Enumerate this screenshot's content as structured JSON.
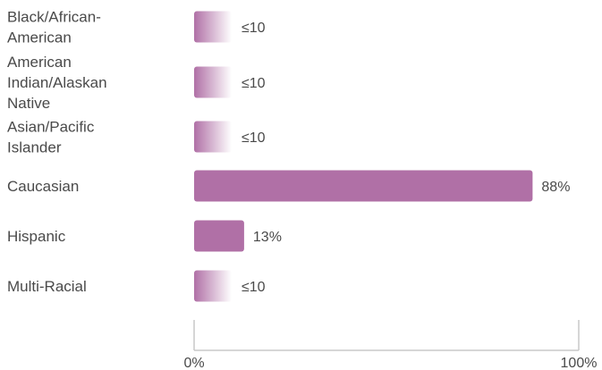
{
  "chart_data": {
    "type": "bar",
    "orientation": "horizontal",
    "categories": [
      [
        "Black/African-",
        "American"
      ],
      [
        "American",
        "Indian/Alaskan",
        "Native"
      ],
      [
        "Asian/Pacific",
        "Islander"
      ],
      [
        "Caucasian"
      ],
      [
        "Hispanic"
      ],
      [
        "Multi-Racial"
      ]
    ],
    "values": [
      10,
      10,
      10,
      88,
      13,
      10
    ],
    "value_labels": [
      "≤10",
      "≤10",
      "≤10",
      "88%",
      "13%",
      "≤10"
    ],
    "suppressed": [
      true,
      true,
      true,
      false,
      false,
      true
    ],
    "xlim": [
      0,
      100
    ],
    "x_ticks": [
      "0%",
      "100%"
    ],
    "grid": false,
    "colors": {
      "bar": "#b070a6",
      "bar_fade_end": "#ffffff",
      "axis": "#c8c8c8",
      "text": "#4a4a4a"
    }
  }
}
